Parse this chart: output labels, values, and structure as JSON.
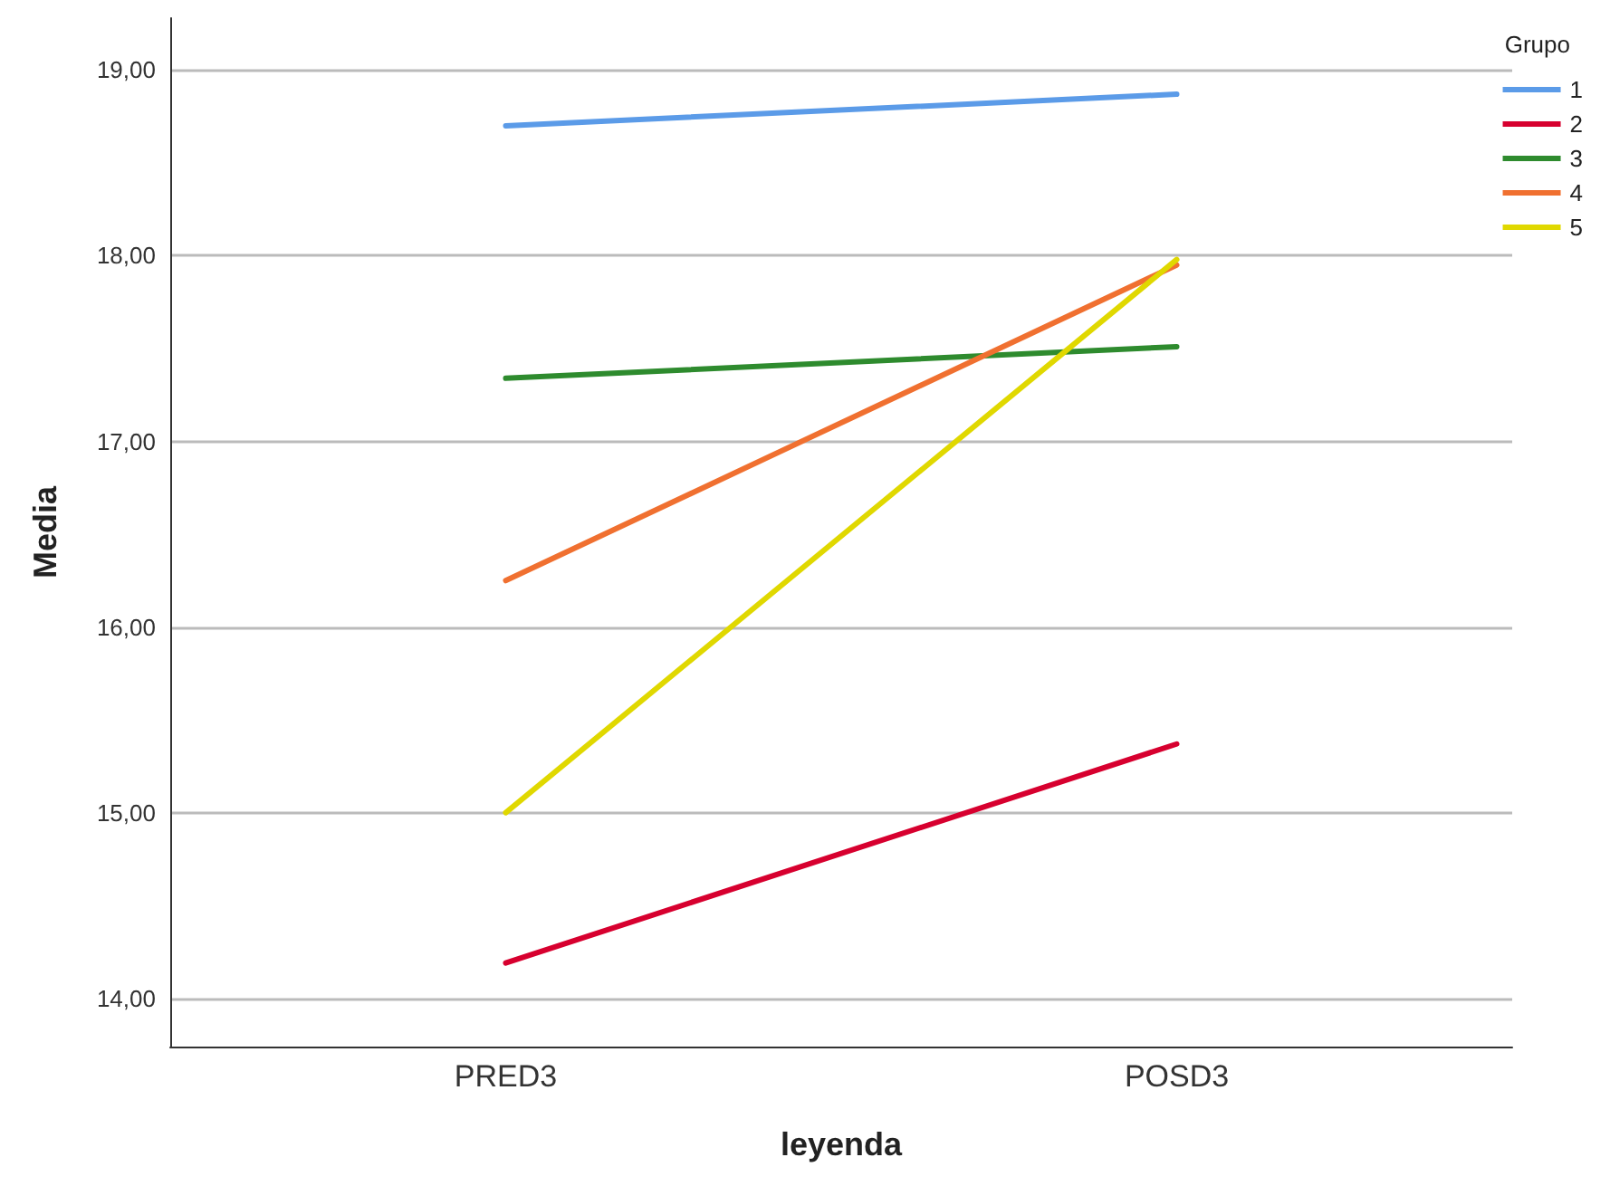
{
  "chart_data": {
    "type": "line",
    "xlabel": "leyenda",
    "ylabel": "Media",
    "legend_title": "Grupo",
    "legend": "top right",
    "grid": "y",
    "marker": "none",
    "line_style": "solid",
    "categories": [
      "PRED3",
      "POSD3"
    ],
    "ylim": [
      13.74,
      19.28
    ],
    "yticks": [
      {
        "value": 14,
        "label": "14,00"
      },
      {
        "value": 15,
        "label": "15,00"
      },
      {
        "value": 16,
        "label": "16,00"
      },
      {
        "value": 17,
        "label": "17,00"
      },
      {
        "value": 18,
        "label": "18,00"
      },
      {
        "value": 19,
        "label": "19,00"
      }
    ],
    "series": [
      {
        "name": "1",
        "color": "#5b9be8",
        "values": [
          18.7,
          18.87
        ]
      },
      {
        "name": "2",
        "color": "#d7002f",
        "values": [
          14.19,
          15.37
        ]
      },
      {
        "name": "3",
        "color": "#2e8b2e",
        "values": [
          17.34,
          17.51
        ]
      },
      {
        "name": "4",
        "color": "#f07030",
        "values": [
          16.25,
          17.95
        ]
      },
      {
        "name": "5",
        "color": "#e0d800",
        "values": [
          15.0,
          17.98
        ]
      }
    ]
  }
}
